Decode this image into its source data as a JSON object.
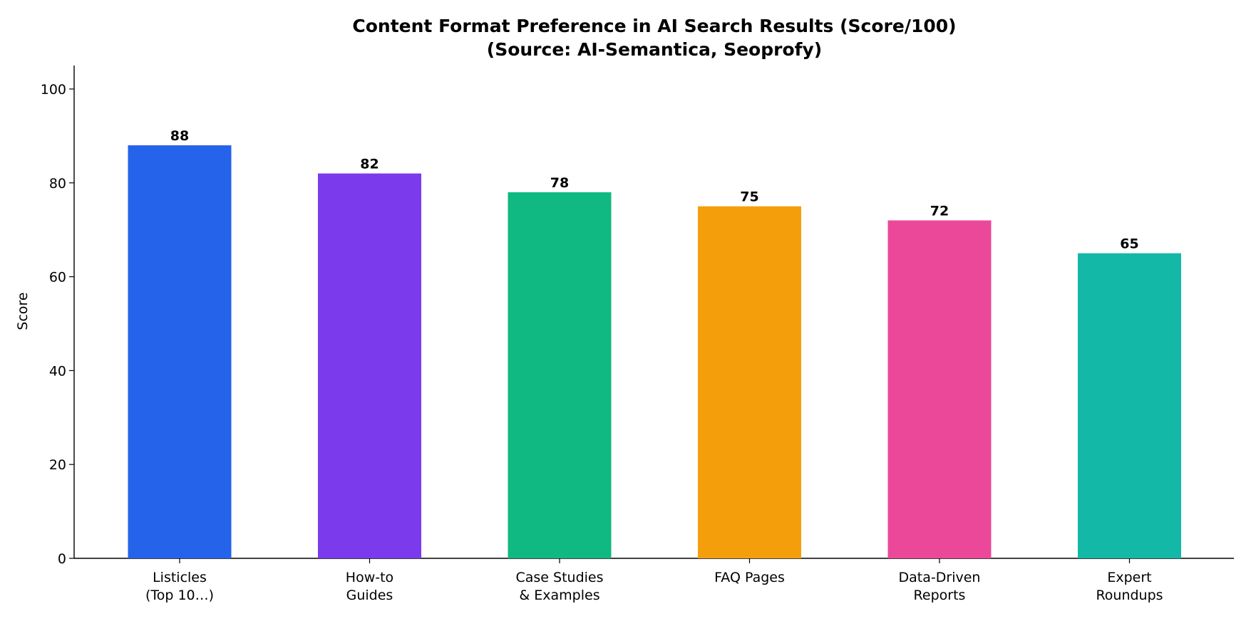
{
  "chart_data": {
    "type": "bar",
    "title": "Content Format Preference in AI Search Results (Score/100)\n(Source: AI-Semantica, Seoprofy)",
    "y_label": "Score",
    "categories": [
      "Listicles\n(Top 10…)",
      "How-to\nGuides",
      "Case Studies\n& Examples",
      "FAQ Pages",
      "Data-Driven\nReports",
      "Expert\nRoundups"
    ],
    "values": [
      88,
      82,
      78,
      75,
      72,
      65
    ],
    "colors": [
      "#2563eb",
      "#7c3aed",
      "#10b981",
      "#f59e0b",
      "#ec4899",
      "#14b8a6"
    ],
    "ylim": [
      0,
      105
    ],
    "yticks": [
      0,
      20,
      40,
      60,
      80,
      100
    ],
    "grid": false
  }
}
